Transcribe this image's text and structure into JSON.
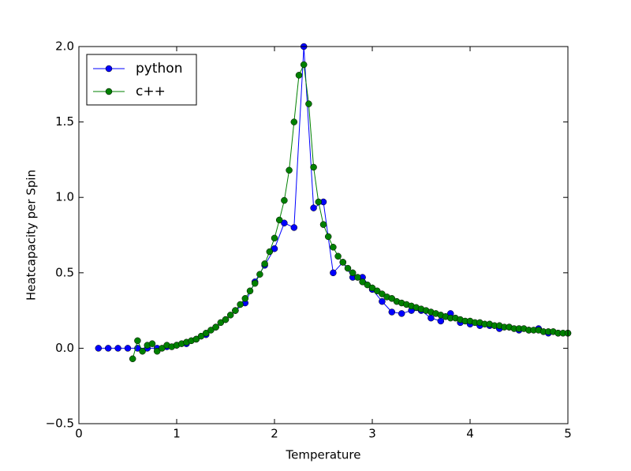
{
  "chart_data": {
    "type": "line",
    "x_label": "Temperature",
    "y_label": "Heatcapacity per Spin",
    "xlim": [
      0,
      5
    ],
    "xticks": [
      0,
      1,
      2,
      3,
      4,
      5
    ],
    "ylim": [
      -0.5,
      2.0
    ],
    "yticks": [
      {
        "value": -0.5,
        "label": "−0.5"
      },
      {
        "value": 0,
        "label": "0.0"
      },
      {
        "value": 0.5,
        "label": "0.5"
      },
      {
        "value": 1,
        "label": "1.0"
      },
      {
        "value": 1.5,
        "label": "1.5"
      },
      {
        "value": 2,
        "label": "2.0"
      }
    ],
    "legend": "upper left",
    "grid": false,
    "series": [
      {
        "name": "python",
        "color": "#0000ff",
        "x": [
          0.2,
          0.3,
          0.4,
          0.5,
          0.6,
          0.7,
          0.8,
          0.9,
          1.0,
          1.1,
          1.2,
          1.3,
          1.4,
          1.5,
          1.6,
          1.7,
          1.8,
          1.9,
          2.0,
          2.1,
          2.2,
          2.3,
          2.4,
          2.5,
          2.6,
          2.7,
          2.8,
          2.9,
          3.0,
          3.1,
          3.2,
          3.3,
          3.4,
          3.5,
          3.6,
          3.7,
          3.8,
          3.9,
          4.0,
          4.1,
          4.2,
          4.3,
          4.4,
          4.5,
          4.6,
          4.7,
          4.8,
          4.9,
          5.0
        ],
        "values": [
          0,
          0,
          0,
          0,
          0,
          0,
          0,
          0.01,
          0.02,
          0.03,
          0.06,
          0.09,
          0.14,
          0.19,
          0.25,
          0.3,
          0.44,
          0.55,
          0.66,
          0.83,
          0.8,
          2.0,
          0.93,
          0.97,
          0.5,
          0.57,
          0.47,
          0.47,
          0.39,
          0.31,
          0.24,
          0.23,
          0.25,
          0.25,
          0.2,
          0.18,
          0.23,
          0.17,
          0.16,
          0.15,
          0.15,
          0.13,
          0.14,
          0.12,
          0.12,
          0.13,
          0.1,
          0.1,
          0.1
        ]
      },
      {
        "name": "c++",
        "color": "#008000",
        "x": [
          0.55,
          0.6,
          0.65,
          0.7,
          0.75,
          0.8,
          0.85,
          0.9,
          0.95,
          1.0,
          1.05,
          1.1,
          1.15,
          1.2,
          1.25,
          1.3,
          1.35,
          1.4,
          1.45,
          1.5,
          1.55,
          1.6,
          1.65,
          1.7,
          1.75,
          1.8,
          1.85,
          1.9,
          1.95,
          2.0,
          2.05,
          2.1,
          2.15,
          2.2,
          2.25,
          2.3,
          2.35,
          2.4,
          2.45,
          2.5,
          2.55,
          2.6,
          2.65,
          2.7,
          2.75,
          2.8,
          2.85,
          2.9,
          2.95,
          3.0,
          3.05,
          3.1,
          3.15,
          3.2,
          3.25,
          3.3,
          3.35,
          3.4,
          3.45,
          3.5,
          3.55,
          3.6,
          3.65,
          3.7,
          3.75,
          3.8,
          3.85,
          3.9,
          3.95,
          4.0,
          4.05,
          4.1,
          4.15,
          4.2,
          4.25,
          4.3,
          4.35,
          4.4,
          4.45,
          4.5,
          4.55,
          4.6,
          4.65,
          4.7,
          4.75,
          4.8,
          4.85,
          4.9,
          4.95,
          5.0
        ],
        "values": [
          -0.07,
          0.05,
          -0.02,
          0.02,
          0.03,
          -0.02,
          0.0,
          0.02,
          0.01,
          0.02,
          0.03,
          0.04,
          0.05,
          0.06,
          0.08,
          0.1,
          0.12,
          0.14,
          0.17,
          0.19,
          0.22,
          0.25,
          0.29,
          0.33,
          0.38,
          0.43,
          0.49,
          0.56,
          0.64,
          0.73,
          0.85,
          0.98,
          1.18,
          1.5,
          1.81,
          1.88,
          1.62,
          1.2,
          0.97,
          0.82,
          0.74,
          0.67,
          0.61,
          0.57,
          0.53,
          0.5,
          0.47,
          0.44,
          0.42,
          0.4,
          0.38,
          0.36,
          0.34,
          0.33,
          0.31,
          0.3,
          0.29,
          0.28,
          0.27,
          0.26,
          0.25,
          0.24,
          0.23,
          0.22,
          0.21,
          0.2,
          0.2,
          0.19,
          0.18,
          0.18,
          0.17,
          0.17,
          0.16,
          0.16,
          0.15,
          0.15,
          0.14,
          0.14,
          0.13,
          0.13,
          0.13,
          0.12,
          0.12,
          0.12,
          0.11,
          0.11,
          0.11,
          0.1,
          0.1,
          0.1
        ]
      }
    ]
  }
}
